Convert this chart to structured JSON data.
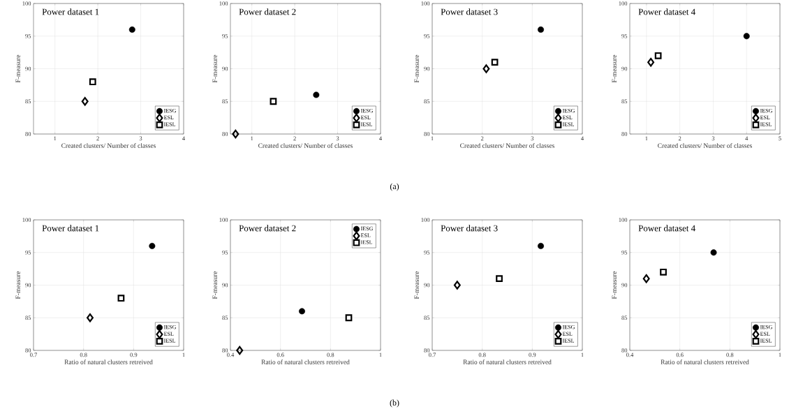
{
  "chart_data": [
    {
      "type": "scatter",
      "title": "Power dataset 1",
      "xlabel": "Created clusters/ Number of classes",
      "ylabel": "F-measure",
      "xlim": [
        0.5,
        4
      ],
      "xticks": [
        1,
        2,
        3,
        4
      ],
      "ylim": [
        80,
        100
      ],
      "yticks": [
        80,
        85,
        90,
        95,
        100
      ],
      "grid": true,
      "legend": "bottom right",
      "annotations": [
        "(a)"
      ],
      "series": [
        {
          "name": "IESG",
          "color": "#000000",
          "marker": "circle",
          "x": [
            2.8
          ],
          "values": [
            96
          ]
        },
        {
          "name": "ESL",
          "color": "#000000",
          "marker": "diamond",
          "x": [
            1.7
          ],
          "values": [
            85
          ]
        },
        {
          "name": "IESL",
          "color": "#000000",
          "marker": "square",
          "x": [
            1.88
          ],
          "values": [
            88
          ]
        }
      ]
    },
    {
      "type": "scatter",
      "title": "Power dataset 2",
      "xlabel": "Created clusters/ Number of classes",
      "ylabel": "F-measure",
      "xlim": [
        0.5,
        4
      ],
      "xticks": [
        1,
        2,
        3,
        4
      ],
      "ylim": [
        80,
        100
      ],
      "yticks": [
        80,
        85,
        90,
        95,
        100
      ],
      "grid": true,
      "legend": "bottom right",
      "series": [
        {
          "name": "IESG",
          "color": "#000000",
          "marker": "circle",
          "x": [
            2.5
          ],
          "values": [
            86
          ]
        },
        {
          "name": "ESL",
          "color": "#000000",
          "marker": "diamond",
          "x": [
            0.62
          ],
          "values": [
            80
          ]
        },
        {
          "name": "IESL",
          "color": "#000000",
          "marker": "square",
          "x": [
            1.5
          ],
          "values": [
            85
          ]
        }
      ]
    },
    {
      "type": "scatter",
      "title": "Power dataset 3",
      "xlabel": "Created clusters/ Number of classes",
      "ylabel": "F-measure",
      "xlim": [
        1,
        4
      ],
      "xticks": [
        1,
        2,
        3,
        4
      ],
      "ylim": [
        80,
        100
      ],
      "yticks": [
        80,
        85,
        90,
        95,
        100
      ],
      "grid": true,
      "legend": "bottom right",
      "series": [
        {
          "name": "IESG",
          "color": "#000000",
          "marker": "circle",
          "x": [
            3.17
          ],
          "values": [
            96
          ]
        },
        {
          "name": "ESL",
          "color": "#000000",
          "marker": "diamond",
          "x": [
            2.08
          ],
          "values": [
            90
          ]
        },
        {
          "name": "IESL",
          "color": "#000000",
          "marker": "square",
          "x": [
            2.25
          ],
          "values": [
            91
          ]
        }
      ]
    },
    {
      "type": "scatter",
      "title": "Power dataset 4",
      "xlabel": "Created clusters/ Number of classes",
      "ylabel": "F-measure",
      "xlim": [
        0.5,
        5
      ],
      "xticks": [
        1,
        2,
        3,
        4,
        5
      ],
      "ylim": [
        80,
        100
      ],
      "yticks": [
        80,
        85,
        90,
        95,
        100
      ],
      "grid": true,
      "legend": "bottom right",
      "series": [
        {
          "name": "IESG",
          "color": "#000000",
          "marker": "circle",
          "x": [
            4.0
          ],
          "values": [
            95
          ]
        },
        {
          "name": "ESL",
          "color": "#000000",
          "marker": "diamond",
          "x": [
            1.13
          ],
          "values": [
            91
          ]
        },
        {
          "name": "IESL",
          "color": "#000000",
          "marker": "square",
          "x": [
            1.35
          ],
          "values": [
            92
          ]
        }
      ]
    },
    {
      "type": "scatter",
      "title": "Power dataset 1",
      "xlabel": "Ratio of natural clusters retreived",
      "ylabel": "F-measure",
      "xlim": [
        0.7,
        1
      ],
      "xticks": [
        0.7,
        0.8,
        0.9,
        1
      ],
      "ylim": [
        80,
        100
      ],
      "yticks": [
        80,
        85,
        90,
        95,
        100
      ],
      "grid": true,
      "legend": "bottom right",
      "annotations": [
        "(b)"
      ],
      "series": [
        {
          "name": "IESG",
          "color": "#000000",
          "marker": "circle",
          "x": [
            0.937
          ],
          "values": [
            96
          ]
        },
        {
          "name": "ESL",
          "color": "#000000",
          "marker": "diamond",
          "x": [
            0.813
          ],
          "values": [
            85
          ]
        },
        {
          "name": "IESL",
          "color": "#000000",
          "marker": "square",
          "x": [
            0.875
          ],
          "values": [
            88
          ]
        }
      ]
    },
    {
      "type": "scatter",
      "title": "Power dataset 2",
      "xlabel": "Ratio of natural clusters retreived",
      "ylabel": "F-measure",
      "xlim": [
        0.4,
        1
      ],
      "xticks": [
        0.4,
        0.6,
        0.8,
        1
      ],
      "ylim": [
        80,
        100
      ],
      "yticks": [
        80,
        85,
        90,
        95,
        100
      ],
      "grid": true,
      "legend": "top right",
      "series": [
        {
          "name": "IESG",
          "color": "#000000",
          "marker": "circle",
          "x": [
            0.686
          ],
          "values": [
            86
          ]
        },
        {
          "name": "ESL",
          "color": "#000000",
          "marker": "diamond",
          "x": [
            0.437
          ],
          "values": [
            80
          ]
        },
        {
          "name": "IESL",
          "color": "#000000",
          "marker": "square",
          "x": [
            0.873
          ],
          "values": [
            85
          ]
        }
      ]
    },
    {
      "type": "scatter",
      "title": "Power dataset 3",
      "xlabel": "Ratio of natural clusters retreived",
      "ylabel": "F-measure",
      "xlim": [
        0.7,
        1
      ],
      "xticks": [
        0.7,
        0.8,
        0.9,
        1
      ],
      "ylim": [
        80,
        100
      ],
      "yticks": [
        80,
        85,
        90,
        95,
        100
      ],
      "grid": true,
      "legend": "bottom right",
      "series": [
        {
          "name": "IESG",
          "color": "#000000",
          "marker": "circle",
          "x": [
            0.917
          ],
          "values": [
            96
          ]
        },
        {
          "name": "ESL",
          "color": "#000000",
          "marker": "diamond",
          "x": [
            0.75
          ],
          "values": [
            90
          ]
        },
        {
          "name": "IESL",
          "color": "#000000",
          "marker": "square",
          "x": [
            0.834
          ],
          "values": [
            91
          ]
        }
      ]
    },
    {
      "type": "scatter",
      "title": "Power dataset 4",
      "xlabel": "Ratio of natural clusters retreived",
      "ylabel": "F-measure",
      "xlim": [
        0.4,
        1
      ],
      "xticks": [
        0.4,
        0.6,
        0.8,
        1
      ],
      "ylim": [
        80,
        100
      ],
      "yticks": [
        80,
        85,
        90,
        95,
        100
      ],
      "grid": true,
      "legend": "bottom right",
      "series": [
        {
          "name": "IESG",
          "color": "#000000",
          "marker": "circle",
          "x": [
            0.735
          ],
          "values": [
            95
          ]
        },
        {
          "name": "ESL",
          "color": "#000000",
          "marker": "diamond",
          "x": [
            0.466
          ],
          "values": [
            91
          ]
        },
        {
          "name": "IESL",
          "color": "#000000",
          "marker": "square",
          "x": [
            0.534
          ],
          "values": [
            92
          ]
        }
      ]
    }
  ]
}
